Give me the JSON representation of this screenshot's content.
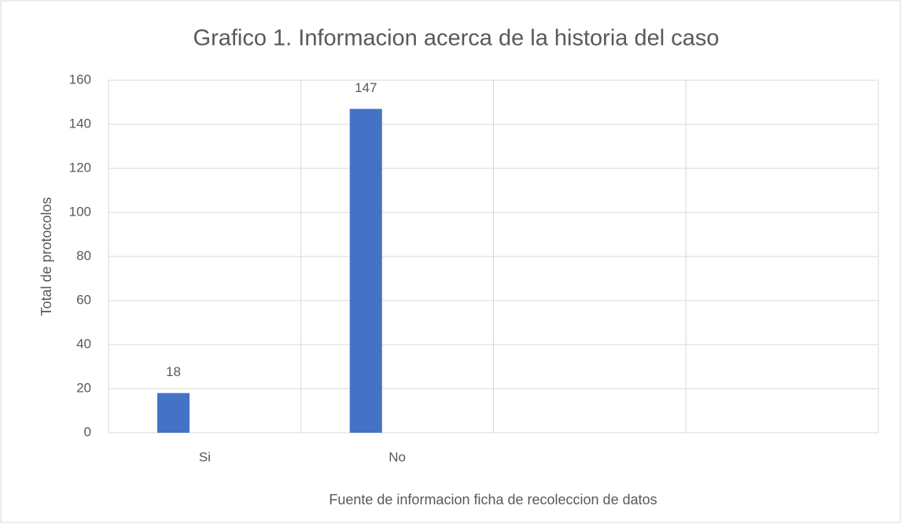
{
  "chart_data": {
    "type": "bar",
    "title": "Grafico 1. Informacion acerca de la historia del caso",
    "x_label": "Fuente de informacion ficha de recoleccion de datos",
    "y_label": "Total de protocolos",
    "categories": [
      "Si",
      "No",
      null,
      null
    ],
    "values": [
      18,
      147,
      null,
      null
    ],
    "color": "#4472c4",
    "ylim": [
      0,
      160
    ],
    "yticks": [
      0,
      20,
      40,
      60,
      80,
      100,
      120,
      140,
      160
    ],
    "grid": true
  }
}
